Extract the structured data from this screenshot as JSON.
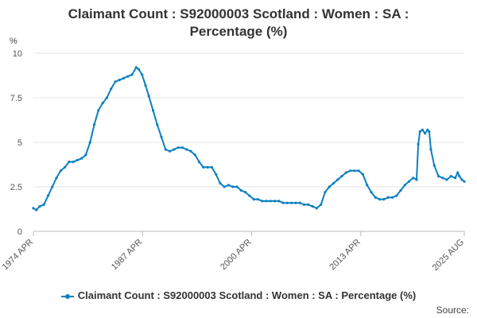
{
  "chart_data": {
    "type": "line",
    "title_line1": "Claimant Count : S92000003 Scotland : Women : SA :",
    "title_line2": "Percentage (%)",
    "ylabel": "%",
    "xlabel": "",
    "ylim": [
      0,
      10
    ],
    "yticks": [
      0,
      2.5,
      5,
      7.5,
      10
    ],
    "ytick_labels": [
      "0",
      "2.5",
      "5",
      "7.5",
      "10"
    ],
    "xtick_labels": [
      "1974 APR",
      "1987 APR",
      "2000 APR",
      "2013 APR",
      "2025 AUG"
    ],
    "xtick_years": [
      1974.25,
      1987.25,
      2000.25,
      2013.25,
      2025.58
    ],
    "xlim": [
      1974.25,
      2025.58
    ],
    "grid": "horizontal",
    "legend_position": "bottom",
    "series": [
      {
        "name": "Claimant Count : S92000003 Scotland : Women : SA : Percentage (%)",
        "color": "#0d80bf",
        "points": [
          [
            1974.25,
            1.3
          ],
          [
            1974.6,
            1.2
          ],
          [
            1975.0,
            1.4
          ],
          [
            1975.5,
            1.5
          ],
          [
            1976.0,
            2.0
          ],
          [
            1976.5,
            2.5
          ],
          [
            1977.0,
            3.0
          ],
          [
            1977.5,
            3.4
          ],
          [
            1978.0,
            3.6
          ],
          [
            1978.5,
            3.9
          ],
          [
            1979.0,
            3.9
          ],
          [
            1979.5,
            4.0
          ],
          [
            1980.0,
            4.1
          ],
          [
            1980.5,
            4.3
          ],
          [
            1981.0,
            5.0
          ],
          [
            1981.5,
            6.0
          ],
          [
            1982.0,
            6.8
          ],
          [
            1982.5,
            7.2
          ],
          [
            1983.0,
            7.5
          ],
          [
            1983.5,
            8.0
          ],
          [
            1984.0,
            8.4
          ],
          [
            1984.5,
            8.5
          ],
          [
            1985.0,
            8.6
          ],
          [
            1985.5,
            8.7
          ],
          [
            1986.0,
            8.8
          ],
          [
            1986.5,
            9.2
          ],
          [
            1986.8,
            9.1
          ],
          [
            1987.2,
            8.8
          ],
          [
            1987.6,
            8.2
          ],
          [
            1988.0,
            7.6
          ],
          [
            1988.5,
            6.8
          ],
          [
            1989.0,
            6.0
          ],
          [
            1989.5,
            5.3
          ],
          [
            1990.0,
            4.6
          ],
          [
            1990.5,
            4.5
          ],
          [
            1991.0,
            4.6
          ],
          [
            1991.5,
            4.7
          ],
          [
            1992.0,
            4.7
          ],
          [
            1992.5,
            4.6
          ],
          [
            1993.0,
            4.5
          ],
          [
            1993.5,
            4.3
          ],
          [
            1994.0,
            3.9
          ],
          [
            1994.5,
            3.6
          ],
          [
            1995.0,
            3.6
          ],
          [
            1995.5,
            3.6
          ],
          [
            1996.0,
            3.2
          ],
          [
            1996.5,
            2.7
          ],
          [
            1997.0,
            2.5
          ],
          [
            1997.5,
            2.6
          ],
          [
            1998.0,
            2.5
          ],
          [
            1998.5,
            2.5
          ],
          [
            1999.0,
            2.3
          ],
          [
            1999.5,
            2.2
          ],
          [
            2000.0,
            2.0
          ],
          [
            2000.5,
            1.8
          ],
          [
            2001.0,
            1.8
          ],
          [
            2001.5,
            1.7
          ],
          [
            2002.0,
            1.7
          ],
          [
            2002.5,
            1.7
          ],
          [
            2003.0,
            1.7
          ],
          [
            2003.5,
            1.7
          ],
          [
            2004.0,
            1.6
          ],
          [
            2004.5,
            1.6
          ],
          [
            2005.0,
            1.6
          ],
          [
            2005.5,
            1.6
          ],
          [
            2006.0,
            1.6
          ],
          [
            2006.5,
            1.5
          ],
          [
            2007.0,
            1.5
          ],
          [
            2007.5,
            1.4
          ],
          [
            2008.0,
            1.3
          ],
          [
            2008.5,
            1.5
          ],
          [
            2009.0,
            2.2
          ],
          [
            2009.5,
            2.5
          ],
          [
            2010.0,
            2.7
          ],
          [
            2010.5,
            2.9
          ],
          [
            2011.0,
            3.1
          ],
          [
            2011.5,
            3.3
          ],
          [
            2012.0,
            3.4
          ],
          [
            2012.5,
            3.4
          ],
          [
            2013.0,
            3.4
          ],
          [
            2013.5,
            3.2
          ],
          [
            2014.0,
            2.6
          ],
          [
            2014.5,
            2.2
          ],
          [
            2015.0,
            1.9
          ],
          [
            2015.5,
            1.8
          ],
          [
            2016.0,
            1.8
          ],
          [
            2016.5,
            1.9
          ],
          [
            2017.0,
            1.9
          ],
          [
            2017.5,
            2.0
          ],
          [
            2018.0,
            2.3
          ],
          [
            2018.5,
            2.6
          ],
          [
            2019.0,
            2.8
          ],
          [
            2019.5,
            3.0
          ],
          [
            2019.9,
            2.9
          ],
          [
            2020.1,
            4.9
          ],
          [
            2020.3,
            5.6
          ],
          [
            2020.6,
            5.7
          ],
          [
            2020.9,
            5.5
          ],
          [
            2021.2,
            5.7
          ],
          [
            2021.4,
            5.6
          ],
          [
            2021.6,
            4.6
          ],
          [
            2022.0,
            3.7
          ],
          [
            2022.5,
            3.1
          ],
          [
            2023.0,
            3.0
          ],
          [
            2023.5,
            2.9
          ],
          [
            2024.0,
            3.1
          ],
          [
            2024.5,
            3.0
          ],
          [
            2024.8,
            3.3
          ],
          [
            2025.0,
            3.1
          ],
          [
            2025.3,
            2.9
          ],
          [
            2025.58,
            2.8
          ]
        ]
      }
    ]
  },
  "source_label": "Source:"
}
